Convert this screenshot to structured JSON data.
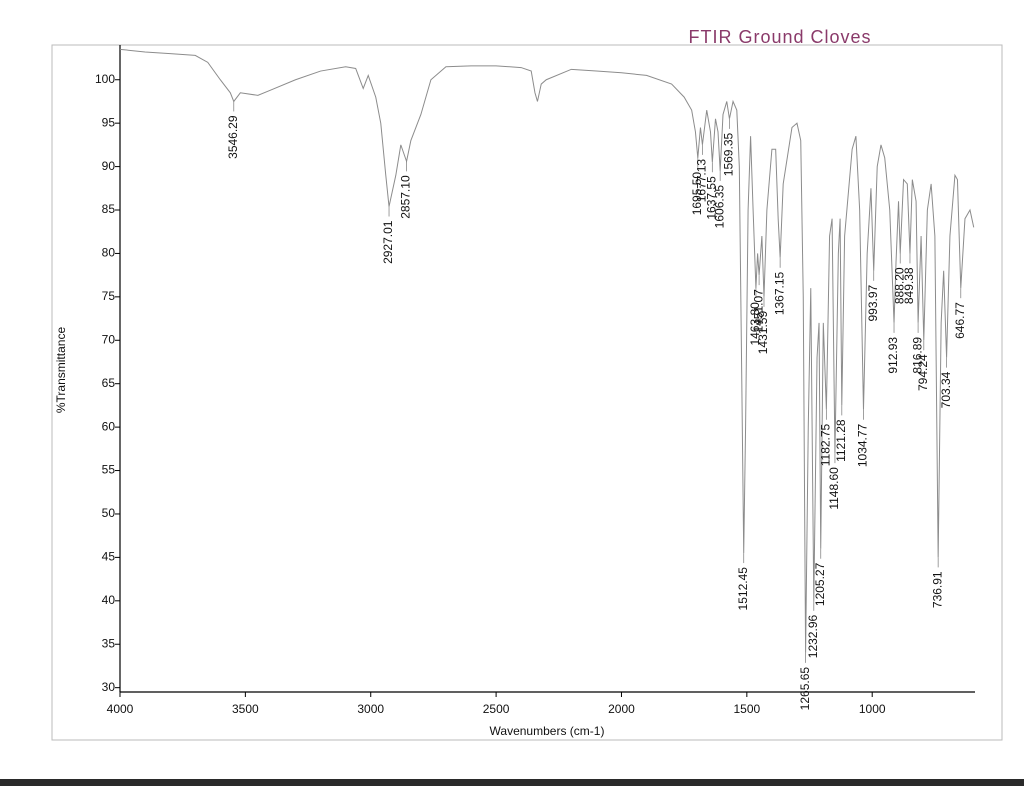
{
  "chart_data": {
    "type": "line",
    "title": "FTIR Ground Cloves",
    "xlabel": "Wavenumbers (cm-1)",
    "ylabel": "%Transmittance",
    "color": "#8c8c8c",
    "xlim": [
      4000,
      590
    ],
    "ylim": [
      29.5,
      104
    ],
    "xticks": [
      4000,
      3500,
      3000,
      2500,
      2000,
      1500,
      1000
    ],
    "yticks": [
      30,
      35,
      40,
      45,
      50,
      55,
      60,
      65,
      70,
      75,
      80,
      85,
      90,
      95,
      100
    ],
    "grid": false,
    "x": [
      4000,
      3900,
      3800,
      3700,
      3650,
      3600,
      3560,
      3546.29,
      3520,
      3450,
      3400,
      3300,
      3200,
      3100,
      3060,
      3030,
      3010,
      2980,
      2960,
      2940,
      2927.01,
      2900,
      2880,
      2857.1,
      2840,
      2800,
      2760,
      2700,
      2600,
      2500,
      2400,
      2360,
      2345,
      2335,
      2320,
      2300,
      2200,
      2100,
      2000,
      1900,
      1800,
      1750,
      1720,
      1705,
      1695.5,
      1685,
      1677.13,
      1660,
      1645,
      1637.55,
      1625,
      1615,
      1606.35,
      1595,
      1580,
      1569.35,
      1555,
      1540,
      1530,
      1520,
      1512.45,
      1505,
      1495,
      1485,
      1475,
      1463.8,
      1457,
      1451.07,
      1440,
      1431.59,
      1420,
      1400,
      1385,
      1375,
      1367.15,
      1355,
      1320,
      1300,
      1285,
      1275,
      1265.65,
      1255,
      1245,
      1232.96,
      1220,
      1212,
      1205.27,
      1195,
      1182.75,
      1170,
      1160,
      1148.6,
      1135,
      1128,
      1121.28,
      1110,
      1080,
      1065,
      1050,
      1034.77,
      1020,
      1005,
      993.97,
      980,
      965,
      950,
      930,
      912.93,
      905,
      895,
      888.2,
      875,
      860,
      849.38,
      840,
      825,
      816.89,
      805,
      794.24,
      780,
      765,
      750,
      736.91,
      725,
      715,
      703.34,
      690,
      670,
      660,
      646.77,
      630,
      610,
      595
    ],
    "values": [
      103.5,
      103.2,
      103,
      102.8,
      102,
      100,
      98.5,
      97.5,
      98.5,
      98.2,
      98.8,
      100,
      101,
      101.5,
      101.3,
      99,
      100.5,
      98,
      95,
      89,
      85.4,
      89,
      92.5,
      90.6,
      93,
      96,
      100,
      101.5,
      101.6,
      101.6,
      101.4,
      101,
      98.5,
      97.5,
      99.5,
      100,
      101.2,
      101,
      100.8,
      100.5,
      99.5,
      98,
      96.5,
      94,
      91,
      94.5,
      92.5,
      96.5,
      94,
      90.5,
      95.5,
      94,
      89.5,
      96,
      97.5,
      95.5,
      97.5,
      96.5,
      90,
      65,
      45.5,
      60,
      85,
      93.5,
      85,
      76,
      80,
      77.5,
      82,
      75,
      85,
      92,
      92,
      84,
      79.5,
      88,
      94.5,
      95,
      93,
      75,
      34,
      60,
      76,
      40,
      68,
      72,
      46,
      72,
      62,
      82,
      84,
      57,
      80,
      84,
      62.5,
      82,
      92,
      93.5,
      85,
      62,
      80,
      87.5,
      78,
      90,
      92.5,
      91,
      85,
      72,
      79,
      86,
      80,
      88.5,
      88,
      80,
      88.5,
      86,
      72,
      82,
      70,
      85,
      88,
      82,
      45,
      72,
      78,
      68,
      82,
      89,
      88.5,
      76,
      84,
      85,
      83
    ],
    "peaks": {
      "x": [
        3546.29,
        2927.01,
        2857.1,
        1695.5,
        1677.13,
        1637.55,
        1606.35,
        1569.35,
        1512.45,
        1463.8,
        1451.07,
        1431.59,
        1367.15,
        1265.65,
        1232.96,
        1205.27,
        1182.75,
        1148.6,
        1121.28,
        1034.77,
        993.97,
        912.93,
        888.2,
        849.38,
        816.89,
        794.24,
        736.91,
        703.34,
        646.77
      ],
      "y": [
        97.5,
        85.4,
        90.6,
        91,
        92.5,
        90.5,
        89.5,
        95.5,
        45.5,
        76,
        77.5,
        75,
        79.5,
        34,
        40,
        46,
        62,
        57,
        62.5,
        62,
        78,
        72,
        80,
        80,
        72,
        70,
        45,
        68,
        76
      ],
      "labels": [
        "3546.29",
        "2927.01",
        "2857.10",
        "1695.50",
        "1677.13",
        "1637.55",
        "1606.35",
        "1569.35",
        "1512.45",
        "1463.80",
        "1451.07",
        "1431.59",
        "1367.15",
        "1265.65",
        "1232.96",
        "1205.27",
        "1182.75",
        "1148.60",
        "1121.28",
        "1034.77",
        "993.97",
        "912.93",
        "888.20",
        "849.38",
        "816.89",
        "794.24",
        "736.91",
        "703.34",
        "646.77"
      ]
    }
  }
}
